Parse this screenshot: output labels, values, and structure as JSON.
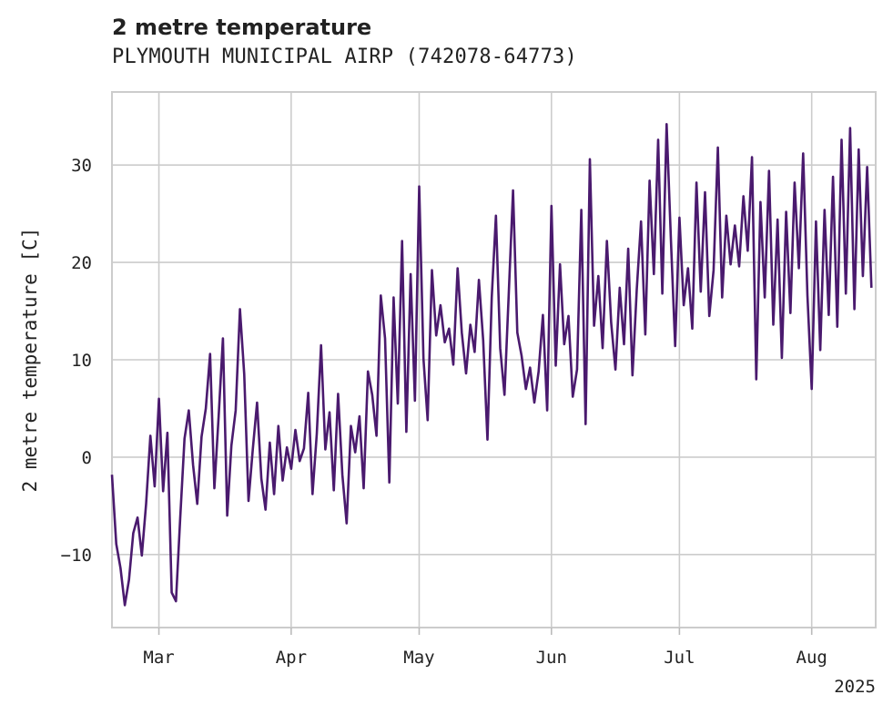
{
  "chart_data": {
    "type": "line",
    "title": "2 metre temperature",
    "subtitle": "PLYMOUTH MUNICIPAL AIRP (742078-64773)",
    "ylabel": "2 metre temperature [C]",
    "xlabel": "",
    "x_range": [
      "2025-02-18",
      "2025-08-16"
    ],
    "ylim": [
      -17.5,
      37.5
    ],
    "x_ticks": [
      {
        "date": "2025-03-01",
        "label": "Mar"
      },
      {
        "date": "2025-04-01",
        "label": "Apr"
      },
      {
        "date": "2025-05-01",
        "label": "May"
      },
      {
        "date": "2025-06-01",
        "label": "Jun"
      },
      {
        "date": "2025-07-01",
        "label": "Jul"
      },
      {
        "date": "2025-08-01",
        "label": "Aug"
      }
    ],
    "x_offset_label": "2025",
    "y_ticks": [
      -10,
      0,
      10,
      20,
      30
    ],
    "y_tick_labels": [
      "−10",
      "0",
      "10",
      "20",
      "30"
    ],
    "grid": true,
    "legend": "none",
    "series": [
      {
        "color": "#4a1a6e",
        "points": [
          [
            "2025-02-18",
            -1.8
          ],
          [
            "2025-02-19",
            -8.9
          ],
          [
            "2025-02-20",
            -11.4
          ],
          [
            "2025-02-21",
            -15.2
          ],
          [
            "2025-02-22",
            -12.6
          ],
          [
            "2025-02-23",
            -7.8
          ],
          [
            "2025-02-24",
            -6.2
          ],
          [
            "2025-02-25",
            -10.1
          ],
          [
            "2025-02-26",
            -4.8
          ],
          [
            "2025-02-27",
            2.2
          ],
          [
            "2025-02-28",
            -3.0
          ],
          [
            "2025-03-01",
            6.0
          ],
          [
            "2025-03-02",
            -3.5
          ],
          [
            "2025-03-03",
            2.5
          ],
          [
            "2025-03-04",
            -13.9
          ],
          [
            "2025-03-05",
            -14.8
          ],
          [
            "2025-03-06",
            -6.2
          ],
          [
            "2025-03-07",
            1.9
          ],
          [
            "2025-03-08",
            4.8
          ],
          [
            "2025-03-09",
            -0.8
          ],
          [
            "2025-03-10",
            -4.8
          ],
          [
            "2025-03-11",
            2.1
          ],
          [
            "2025-03-12",
            5.0
          ],
          [
            "2025-03-13",
            10.6
          ],
          [
            "2025-03-14",
            -3.2
          ],
          [
            "2025-03-15",
            4.2
          ],
          [
            "2025-03-16",
            12.2
          ],
          [
            "2025-03-17",
            -6.0
          ],
          [
            "2025-03-18",
            1.2
          ],
          [
            "2025-03-19",
            4.8
          ],
          [
            "2025-03-20",
            15.2
          ],
          [
            "2025-03-21",
            8.5
          ],
          [
            "2025-03-22",
            -4.5
          ],
          [
            "2025-03-23",
            0.8
          ],
          [
            "2025-03-24",
            5.6
          ],
          [
            "2025-03-25",
            -2.2
          ],
          [
            "2025-03-26",
            -5.4
          ],
          [
            "2025-03-27",
            1.5
          ],
          [
            "2025-03-28",
            -3.8
          ],
          [
            "2025-03-29",
            3.2
          ],
          [
            "2025-03-30",
            -2.4
          ],
          [
            "2025-03-31",
            1.0
          ],
          [
            "2025-04-01",
            -1.2
          ],
          [
            "2025-04-02",
            2.8
          ],
          [
            "2025-04-03",
            -0.4
          ],
          [
            "2025-04-04",
            0.9
          ],
          [
            "2025-04-05",
            6.6
          ],
          [
            "2025-04-06",
            -3.8
          ],
          [
            "2025-04-07",
            2.4
          ],
          [
            "2025-04-08",
            11.5
          ],
          [
            "2025-04-09",
            0.8
          ],
          [
            "2025-04-10",
            4.6
          ],
          [
            "2025-04-11",
            -3.4
          ],
          [
            "2025-04-12",
            6.5
          ],
          [
            "2025-04-13",
            -1.8
          ],
          [
            "2025-04-14",
            -6.8
          ],
          [
            "2025-04-15",
            3.2
          ],
          [
            "2025-04-16",
            0.5
          ],
          [
            "2025-04-17",
            4.2
          ],
          [
            "2025-04-18",
            -3.2
          ],
          [
            "2025-04-19",
            8.8
          ],
          [
            "2025-04-20",
            6.4
          ],
          [
            "2025-04-21",
            2.2
          ],
          [
            "2025-04-22",
            16.6
          ],
          [
            "2025-04-23",
            12.2
          ],
          [
            "2025-04-24",
            -2.6
          ],
          [
            "2025-04-25",
            16.4
          ],
          [
            "2025-04-26",
            5.5
          ],
          [
            "2025-04-27",
            22.2
          ],
          [
            "2025-04-28",
            2.6
          ],
          [
            "2025-04-29",
            18.8
          ],
          [
            "2025-04-30",
            5.8
          ],
          [
            "2025-05-01",
            27.8
          ],
          [
            "2025-05-02",
            10.1
          ],
          [
            "2025-05-03",
            3.8
          ],
          [
            "2025-05-04",
            19.2
          ],
          [
            "2025-05-05",
            12.5
          ],
          [
            "2025-05-06",
            15.6
          ],
          [
            "2025-05-07",
            11.8
          ],
          [
            "2025-05-08",
            13.2
          ],
          [
            "2025-05-09",
            9.5
          ],
          [
            "2025-05-10",
            19.4
          ],
          [
            "2025-05-11",
            12.8
          ],
          [
            "2025-05-12",
            8.6
          ],
          [
            "2025-05-13",
            13.6
          ],
          [
            "2025-05-14",
            10.8
          ],
          [
            "2025-05-15",
            18.2
          ],
          [
            "2025-05-16",
            12.0
          ],
          [
            "2025-05-17",
            1.8
          ],
          [
            "2025-05-18",
            16.4
          ],
          [
            "2025-05-19",
            24.8
          ],
          [
            "2025-05-20",
            11.2
          ],
          [
            "2025-05-21",
            6.4
          ],
          [
            "2025-05-22",
            16.8
          ],
          [
            "2025-05-23",
            27.4
          ],
          [
            "2025-05-24",
            12.8
          ],
          [
            "2025-05-25",
            10.4
          ],
          [
            "2025-05-26",
            7.0
          ],
          [
            "2025-05-27",
            9.2
          ],
          [
            "2025-05-28",
            5.6
          ],
          [
            "2025-05-29",
            8.8
          ],
          [
            "2025-05-30",
            14.6
          ],
          [
            "2025-05-31",
            4.8
          ],
          [
            "2025-06-01",
            25.8
          ],
          [
            "2025-06-02",
            9.4
          ],
          [
            "2025-06-03",
            19.8
          ],
          [
            "2025-06-04",
            11.6
          ],
          [
            "2025-06-05",
            14.5
          ],
          [
            "2025-06-06",
            6.2
          ],
          [
            "2025-06-07",
            9.0
          ],
          [
            "2025-06-08",
            25.4
          ],
          [
            "2025-06-09",
            3.4
          ],
          [
            "2025-06-10",
            30.6
          ],
          [
            "2025-06-11",
            13.5
          ],
          [
            "2025-06-12",
            18.6
          ],
          [
            "2025-06-13",
            11.2
          ],
          [
            "2025-06-14",
            22.2
          ],
          [
            "2025-06-15",
            13.8
          ],
          [
            "2025-06-16",
            9.0
          ],
          [
            "2025-06-17",
            17.4
          ],
          [
            "2025-06-18",
            11.6
          ],
          [
            "2025-06-19",
            21.4
          ],
          [
            "2025-06-20",
            8.4
          ],
          [
            "2025-06-21",
            17.2
          ],
          [
            "2025-06-22",
            24.2
          ],
          [
            "2025-06-23",
            12.6
          ],
          [
            "2025-06-24",
            28.4
          ],
          [
            "2025-06-25",
            18.8
          ],
          [
            "2025-06-26",
            32.6
          ],
          [
            "2025-06-27",
            16.8
          ],
          [
            "2025-06-28",
            34.2
          ],
          [
            "2025-06-29",
            22.4
          ],
          [
            "2025-06-30",
            11.4
          ],
          [
            "2025-07-01",
            24.6
          ],
          [
            "2025-07-02",
            15.6
          ],
          [
            "2025-07-03",
            19.4
          ],
          [
            "2025-07-04",
            13.2
          ],
          [
            "2025-07-05",
            28.2
          ],
          [
            "2025-07-06",
            17.0
          ],
          [
            "2025-07-07",
            27.2
          ],
          [
            "2025-07-08",
            14.5
          ],
          [
            "2025-07-09",
            19.2
          ],
          [
            "2025-07-10",
            31.8
          ],
          [
            "2025-07-11",
            16.4
          ],
          [
            "2025-07-12",
            24.8
          ],
          [
            "2025-07-13",
            19.8
          ],
          [
            "2025-07-14",
            23.8
          ],
          [
            "2025-07-15",
            19.6
          ],
          [
            "2025-07-16",
            26.8
          ],
          [
            "2025-07-17",
            21.2
          ],
          [
            "2025-07-18",
            30.8
          ],
          [
            "2025-07-19",
            8.0
          ],
          [
            "2025-07-20",
            26.2
          ],
          [
            "2025-07-21",
            16.4
          ],
          [
            "2025-07-22",
            29.4
          ],
          [
            "2025-07-23",
            13.6
          ],
          [
            "2025-07-24",
            24.4
          ],
          [
            "2025-07-25",
            10.2
          ],
          [
            "2025-07-26",
            25.2
          ],
          [
            "2025-07-27",
            14.8
          ],
          [
            "2025-07-28",
            28.2
          ],
          [
            "2025-07-29",
            19.4
          ],
          [
            "2025-07-30",
            31.2
          ],
          [
            "2025-07-31",
            16.6
          ],
          [
            "2025-08-01",
            7.0
          ],
          [
            "2025-08-02",
            24.2
          ],
          [
            "2025-08-03",
            11.0
          ],
          [
            "2025-08-04",
            25.4
          ],
          [
            "2025-08-05",
            14.6
          ],
          [
            "2025-08-06",
            28.8
          ],
          [
            "2025-08-07",
            13.4
          ],
          [
            "2025-08-08",
            32.6
          ],
          [
            "2025-08-09",
            16.8
          ],
          [
            "2025-08-10",
            33.8
          ],
          [
            "2025-08-11",
            15.2
          ],
          [
            "2025-08-12",
            31.6
          ],
          [
            "2025-08-13",
            18.6
          ],
          [
            "2025-08-14",
            29.8
          ],
          [
            "2025-08-15",
            17.4
          ]
        ]
      }
    ]
  }
}
